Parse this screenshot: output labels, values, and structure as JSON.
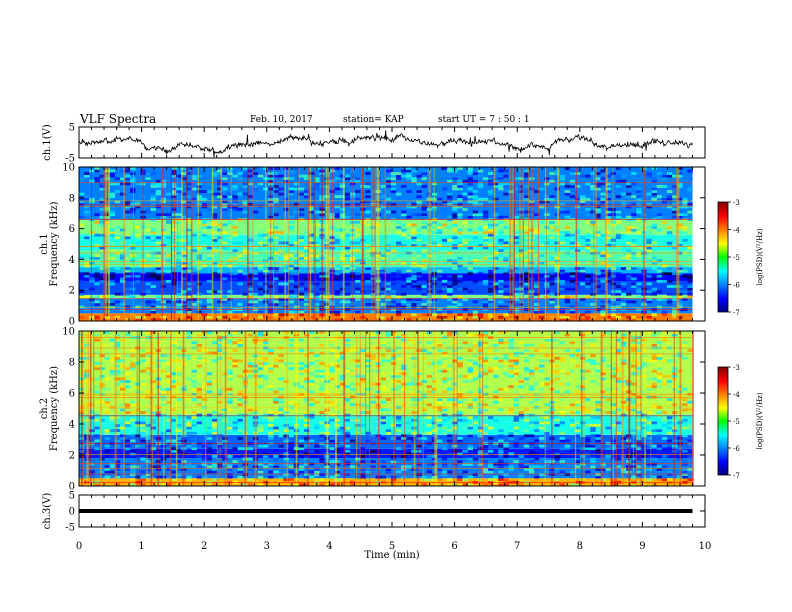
{
  "header": {
    "title": "VLF Spectra",
    "date": "Feb. 10, 2017",
    "station": "station= KAP",
    "start": "start  UT =   7 : 50 : 1"
  },
  "chart_data": [
    {
      "type": "line",
      "panel": "ch1-waveform",
      "ylabel": "ch.1(V)",
      "ylim": [
        -5,
        5
      ],
      "yticks": [
        "5",
        "-5"
      ],
      "xlim": [
        0,
        10
      ],
      "series": [
        {
          "x_range": [
            0,
            9.8
          ],
          "mean": 0,
          "amplitude": 2.2,
          "style": "noisy-waveform"
        }
      ]
    },
    {
      "type": "heatmap",
      "panel": "ch1-spectrogram",
      "ylabel": "ch.1\nFrequency (kHz)",
      "ylim": [
        0,
        10
      ],
      "yticks": [
        "0",
        "2",
        "4",
        "6",
        "8",
        "10"
      ],
      "xlim": [
        0,
        10
      ],
      "data_x_range": [
        0,
        9.8
      ],
      "colorbar": {
        "label": "log(PSD)(V²/Hz)",
        "range": [
          -7,
          -3
        ],
        "ticks": [
          "-3",
          "-4",
          "-5",
          "-6",
          "-7"
        ]
      },
      "bands": [
        {
          "f": [
            0.0,
            0.5
          ],
          "level": -4.0
        },
        {
          "f": [
            0.5,
            1.5
          ],
          "level": -6.0
        },
        {
          "f": [
            1.5,
            1.7
          ],
          "level": -5.0
        },
        {
          "f": [
            1.7,
            2.6
          ],
          "level": -6.2
        },
        {
          "f": [
            2.6,
            3.1
          ],
          "level": -6.5
        },
        {
          "f": [
            3.1,
            3.5
          ],
          "level": -5.8
        },
        {
          "f": [
            3.5,
            4.6
          ],
          "level": -5.2
        },
        {
          "f": [
            4.6,
            5.6
          ],
          "level": -5.4
        },
        {
          "f": [
            5.6,
            6.6
          ],
          "level": -5.0
        },
        {
          "f": [
            6.6,
            10.0
          ],
          "level": -6.0
        }
      ]
    },
    {
      "type": "heatmap",
      "panel": "ch2-spectrogram",
      "ylabel": "ch.2\nFrequency (kHz)",
      "ylim": [
        0,
        10
      ],
      "yticks": [
        "0",
        "2",
        "4",
        "6",
        "8",
        "10"
      ],
      "xlim": [
        0,
        10
      ],
      "data_x_range": [
        0,
        9.8
      ],
      "colorbar": {
        "label": "log(PSD)(V²/Hz)",
        "range": [
          -7,
          -3
        ],
        "ticks": [
          "-3",
          "-4",
          "-5",
          "-6",
          "-7"
        ]
      },
      "bands": [
        {
          "f": [
            0.0,
            0.5
          ],
          "level": -4.2
        },
        {
          "f": [
            0.5,
            1.8
          ],
          "level": -6.0
        },
        {
          "f": [
            1.8,
            2.4
          ],
          "level": -6.4
        },
        {
          "f": [
            2.4,
            3.3
          ],
          "level": -6.1
        },
        {
          "f": [
            3.3,
            4.6
          ],
          "level": -5.4
        },
        {
          "f": [
            4.6,
            10.0
          ],
          "level": -4.8
        }
      ]
    },
    {
      "type": "line",
      "panel": "ch3-waveform",
      "ylabel": "ch.3(V)",
      "ylim": [
        -5,
        5
      ],
      "yticks": [
        "5",
        "0",
        "-5"
      ],
      "xlim": [
        0,
        10
      ],
      "series": [
        {
          "x_range": [
            0,
            9.8
          ],
          "value": 0,
          "style": "flat-thick"
        }
      ]
    }
  ],
  "xaxis": {
    "label": "Time (min)",
    "ticks": [
      "0",
      "1",
      "2",
      "3",
      "4",
      "5",
      "6",
      "7",
      "8",
      "9",
      "10"
    ]
  },
  "colors": {
    "frame": "#000000",
    "colormap": [
      "#000080",
      "#0000ff",
      "#00ffff",
      "#00ff00",
      "#ffff00",
      "#ff0000",
      "#800000"
    ]
  }
}
